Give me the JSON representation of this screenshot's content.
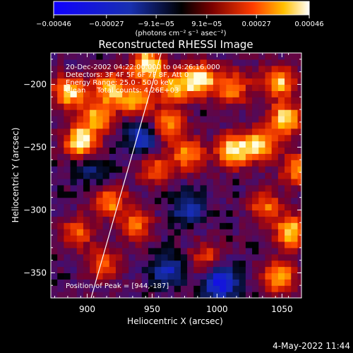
{
  "chart_data": {
    "type": "heatmap",
    "title": "Reconstructed RHESSI Image",
    "xlabel": "Heliocentric X (arcsec)",
    "ylabel": "Heliocentric Y (arcsec)",
    "xlim": [
      872,
      1065
    ],
    "ylim": [
      -370,
      -175
    ],
    "x_ticks": [
      900,
      950,
      1000,
      1050
    ],
    "y_ticks": [
      -200,
      -250,
      -300,
      -350
    ],
    "x_tick_labels": [
      "900",
      "950",
      "1000",
      "1050"
    ],
    "y_tick_labels": [
      "−200",
      "−250",
      "−300",
      "−350"
    ],
    "colorbar": {
      "range": [
        -0.00046,
        0.00046
      ],
      "tick_labels": [
        "−0.00046",
        "−0.00027",
        "−9.1e−05",
        "9.1e−05",
        "0.00027",
        "0.00046"
      ],
      "tick_values": [
        -0.00046,
        -0.00027,
        -9.1e-05,
        9.1e-05,
        0.00027,
        0.00046
      ],
      "units_label": "(photons cm⁻² s⁻¹ asec⁻²)"
    },
    "annotations": [
      "20-Dec-2002 04:22:00.000 to 04:26:16.000",
      "Detectors: 3F 4F 5F 6F 7F 8F, Att 0",
      "Energy Range: 25.0 - 50.0 keV",
      "Clean     Total counts: 4.26E+03"
    ],
    "peak_label": "Position of Peak = [944,-187]",
    "peak": [
      944,
      -187
    ],
    "limb_line": [
      [
        903,
        -370
      ],
      [
        957,
        -175
      ]
    ],
    "hotspots": [
      {
        "x": 884,
        "y": -208,
        "v": 0.9
      },
      {
        "x": 893,
        "y": -248,
        "v": 1.0
      },
      {
        "x": 905,
        "y": -228,
        "v": 0.7
      },
      {
        "x": 915,
        "y": -205,
        "v": 0.8
      },
      {
        "x": 944,
        "y": -187,
        "v": 1.0
      },
      {
        "x": 935,
        "y": -215,
        "v": 0.75
      },
      {
        "x": 960,
        "y": -235,
        "v": 0.7
      },
      {
        "x": 965,
        "y": -205,
        "v": 0.8
      },
      {
        "x": 985,
        "y": -198,
        "v": 0.95
      },
      {
        "x": 1010,
        "y": -205,
        "v": 0.7
      },
      {
        "x": 1045,
        "y": -200,
        "v": 0.8
      },
      {
        "x": 1050,
        "y": -230,
        "v": 0.9
      },
      {
        "x": 1030,
        "y": -250,
        "v": 0.85
      },
      {
        "x": 1010,
        "y": -255,
        "v": 0.9
      },
      {
        "x": 975,
        "y": -258,
        "v": 0.7
      },
      {
        "x": 950,
        "y": -270,
        "v": 0.55
      },
      {
        "x": 1060,
        "y": -270,
        "v": 0.75
      },
      {
        "x": 1055,
        "y": -320,
        "v": 0.85
      },
      {
        "x": 1035,
        "y": -300,
        "v": 0.6
      },
      {
        "x": 915,
        "y": -295,
        "v": 0.7
      },
      {
        "x": 935,
        "y": -315,
        "v": 0.6
      },
      {
        "x": 890,
        "y": -320,
        "v": 0.55
      },
      {
        "x": 910,
        "y": -345,
        "v": 0.6
      },
      {
        "x": 1045,
        "y": -355,
        "v": 0.8
      },
      {
        "x": 990,
        "y": -340,
        "v": 0.5
      }
    ],
    "coldspots": [
      {
        "x": 1000,
        "y": -360,
        "v": -0.9
      },
      {
        "x": 975,
        "y": -300,
        "v": -0.5
      },
      {
        "x": 940,
        "y": -245,
        "v": -0.6
      },
      {
        "x": 960,
        "y": -350,
        "v": -0.55
      },
      {
        "x": 900,
        "y": -270,
        "v": -0.4
      }
    ]
  },
  "footer": {
    "date": "4-May-2022 11:44"
  }
}
